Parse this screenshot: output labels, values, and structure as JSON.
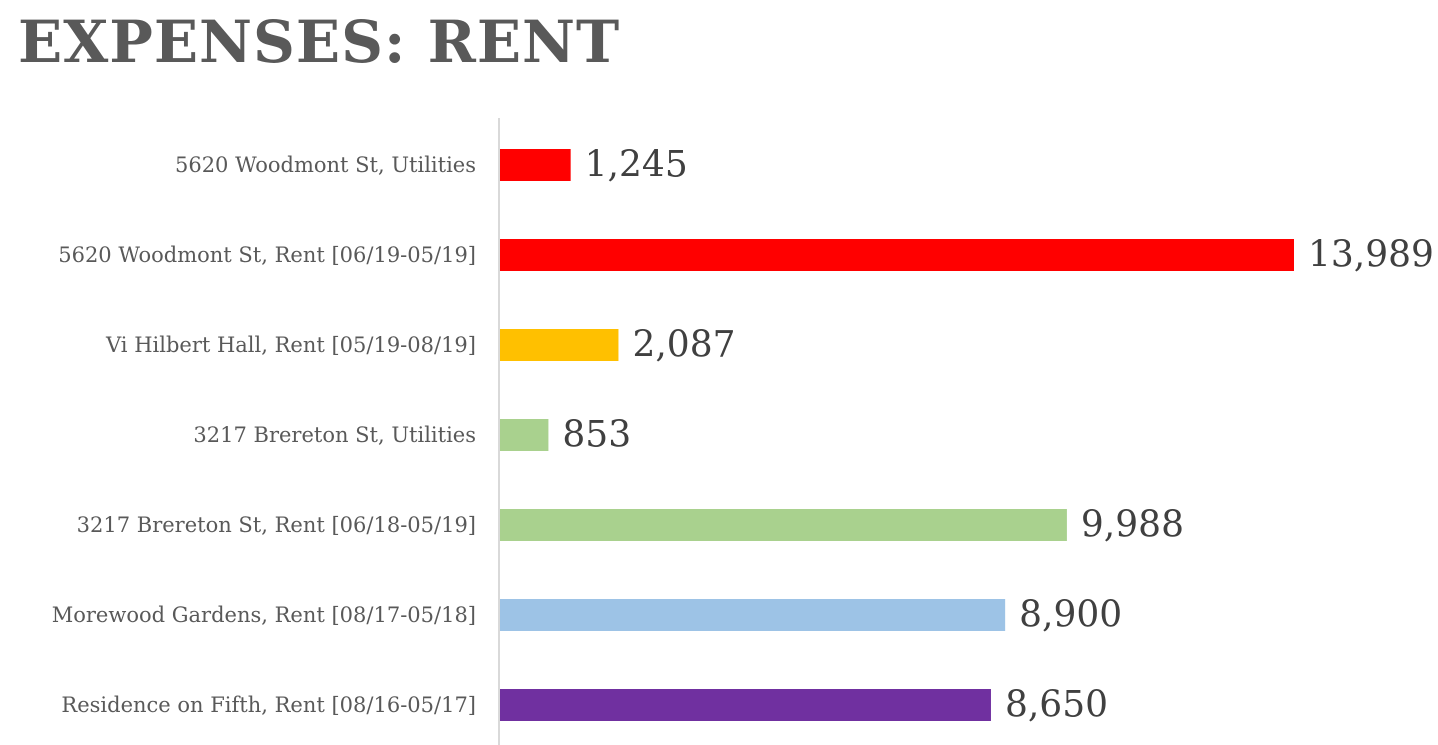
{
  "title": "EXPENSES: RENT",
  "chart_data": {
    "type": "bar",
    "orientation": "horizontal",
    "title": "EXPENSES: RENT",
    "xlabel": "",
    "ylabel": "",
    "grid": false,
    "legend": "none",
    "xlim": [
      0,
      14000
    ],
    "categories": [
      "5620 Woodmont St, Utilities",
      "5620 Woodmont St, Rent [06/19-05/19]",
      "Vi Hilbert Hall, Rent [05/19-08/19]",
      "3217 Brereton St, Utilities",
      "3217 Brereton St, Rent [06/18-05/19]",
      "Morewood Gardens, Rent [08/17-05/18]",
      "Residence on Fifth, Rent [08/16-05/17]"
    ],
    "values": [
      1245,
      13989,
      2087,
      853,
      9988,
      8900,
      8650
    ],
    "data_labels": [
      "1,245",
      "13,989",
      "2,087",
      "853",
      "9,988",
      "8,900",
      "8,650"
    ],
    "colors": [
      "#FF0000",
      "#FF0000",
      "#FFC000",
      "#A9D18E",
      "#A9D18E",
      "#9DC3E6",
      "#7030A0"
    ],
    "axis_color": "#D9D9D9"
  }
}
